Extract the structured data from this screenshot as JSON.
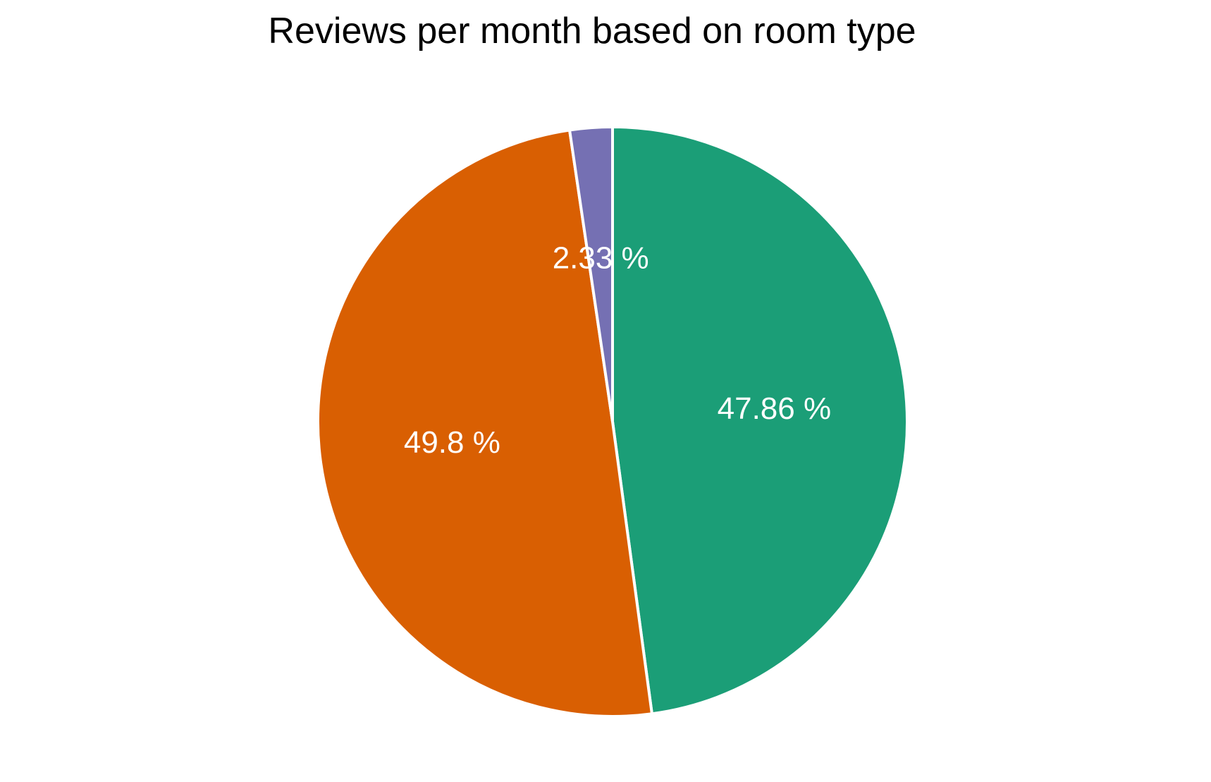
{
  "chart_data": {
    "type": "pie",
    "title": "Reviews per month based on room type",
    "slices": [
      {
        "value": 47.86,
        "label": "47.86 %",
        "color": "#1b9e77"
      },
      {
        "value": 49.8,
        "label": "49.8 %",
        "color": "#d95f02"
      },
      {
        "value": 2.33,
        "label": "2.33 %",
        "color": "#7570b3"
      }
    ],
    "start": "12 o'clock",
    "direction": "clockwise",
    "legend": "none"
  }
}
